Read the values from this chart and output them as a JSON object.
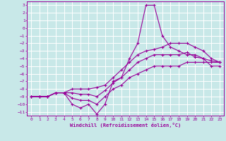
{
  "xlabel": "Windchill (Refroidissement éolien,°C)",
  "bg_color": "#c8e8e8",
  "grid_color": "#ffffff",
  "line_color": "#990099",
  "xlim": [
    -0.5,
    23.5
  ],
  "ylim": [
    -11.5,
    3.5
  ],
  "yticks": [
    3,
    2,
    1,
    0,
    -1,
    -2,
    -3,
    -4,
    -5,
    -6,
    -7,
    -8,
    -9,
    -10,
    -11
  ],
  "xticks": [
    0,
    1,
    2,
    3,
    4,
    5,
    6,
    7,
    8,
    9,
    10,
    11,
    12,
    13,
    14,
    15,
    16,
    17,
    18,
    19,
    20,
    21,
    22,
    23
  ],
  "hours": [
    0,
    1,
    2,
    3,
    4,
    5,
    6,
    7,
    8,
    9,
    10,
    11,
    12,
    13,
    14,
    15,
    16,
    17,
    18,
    19,
    20,
    21,
    22,
    23
  ],
  "line_main": [
    -9.0,
    -9.0,
    -9.0,
    -8.5,
    -8.5,
    -10.0,
    -10.5,
    -10.0,
    -11.3,
    -10.0,
    -7.0,
    -6.5,
    -4.0,
    -2.0,
    3.0,
    3.0,
    -1.0,
    -2.5,
    -3.0,
    -3.5,
    -3.5,
    -4.0,
    -5.0,
    -5.0
  ],
  "line_upper": [
    -9.0,
    -9.0,
    -9.0,
    -8.5,
    -8.5,
    -8.0,
    -8.0,
    -8.0,
    -7.8,
    -7.5,
    -6.5,
    -5.5,
    -4.5,
    -3.5,
    -3.0,
    -2.8,
    -2.5,
    -2.0,
    -2.0,
    -2.0,
    -2.5,
    -3.0,
    -4.0,
    -4.5
  ],
  "line_lower": [
    -9.0,
    -9.0,
    -9.0,
    -8.5,
    -8.5,
    -9.2,
    -9.5,
    -9.5,
    -10.0,
    -9.0,
    -8.0,
    -7.5,
    -6.5,
    -6.0,
    -5.5,
    -5.0,
    -5.0,
    -5.0,
    -5.0,
    -4.5,
    -4.5,
    -4.5,
    -4.5,
    -4.5
  ],
  "line_mid": [
    -9.0,
    -9.0,
    -9.0,
    -8.5,
    -8.5,
    -8.5,
    -8.7,
    -8.7,
    -9.0,
    -8.2,
    -7.2,
    -6.5,
    -5.5,
    -4.5,
    -4.0,
    -3.5,
    -3.5,
    -3.5,
    -3.5,
    -3.2,
    -3.8,
    -4.0,
    -4.3,
    -4.5
  ]
}
